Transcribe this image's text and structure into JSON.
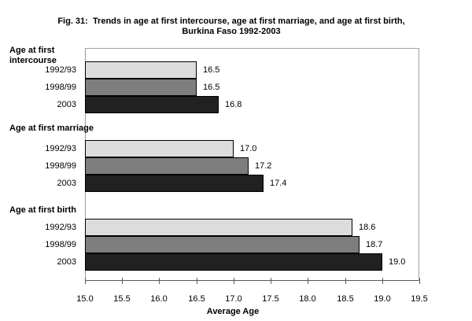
{
  "figure": {
    "title_line1": "Fig. 31:  Trends in age at first intercourse, age at first marriage, and age at first birth,",
    "title_line2": "Burkina Faso 1992-2003"
  },
  "chart_data": {
    "type": "bar",
    "orientation": "horizontal",
    "title": "Fig. 31: Trends in age at first intercourse, age at first marriage, and age at first birth, Burkina Faso 1992-2003",
    "xlabel": "Average Age",
    "xlim": [
      15.0,
      19.5
    ],
    "x_tick_labels": [
      "15.0",
      "15.5",
      "16.0",
      "16.5",
      "17.0",
      "17.5",
      "18.0",
      "18.5",
      "19.0",
      "19.5"
    ],
    "x_tick_values": [
      15.0,
      15.5,
      16.0,
      16.5,
      17.0,
      17.5,
      18.0,
      18.5,
      19.0,
      19.5
    ],
    "grid": false,
    "legend": "none",
    "value_labels_shown": true,
    "series_order": [
      "1992/93",
      "1998/99",
      "2003"
    ],
    "series_colors": [
      "#dcdcdc",
      "#7e7e7e",
      "#212121"
    ],
    "groups": [
      {
        "label": "Age at first intercourse",
        "label_lines": [
          "Age at first",
          "intercourse"
        ],
        "bars": [
          {
            "period": "1992/93",
            "value": 16.5
          },
          {
            "period": "1998/99",
            "value": 16.5
          },
          {
            "period": "2003",
            "value": 16.8
          }
        ]
      },
      {
        "label": "Age at first marriage",
        "label_lines": [
          "Age at first marriage"
        ],
        "bars": [
          {
            "period": "1992/93",
            "value": 17.0
          },
          {
            "period": "1998/99",
            "value": 17.2
          },
          {
            "period": "2003",
            "value": 17.4
          }
        ]
      },
      {
        "label": "Age at first birth",
        "label_lines": [
          "Age at first birth"
        ],
        "bars": [
          {
            "period": "1992/93",
            "value": 18.6
          },
          {
            "period": "1998/99",
            "value": 18.7
          },
          {
            "period": "2003",
            "value": 19.0
          }
        ]
      }
    ]
  }
}
